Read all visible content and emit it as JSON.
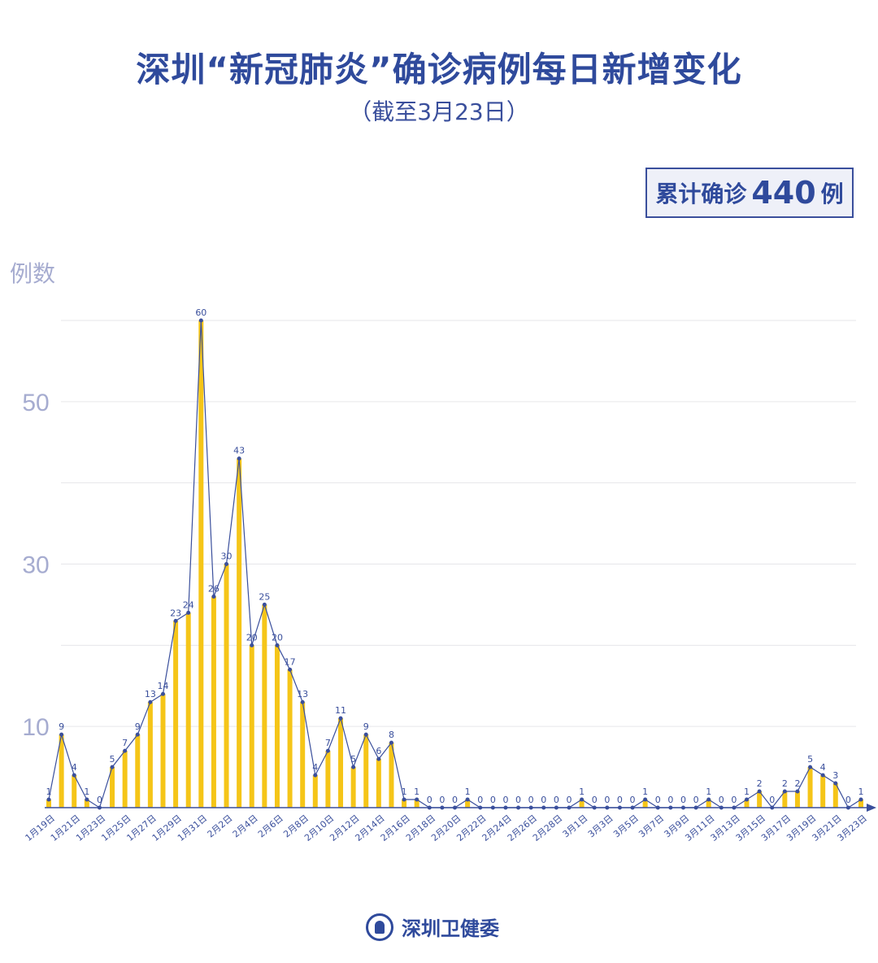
{
  "title": "深圳“新冠肺炎”确诊病例每日新增变化",
  "subtitle": "（截至3月23日）",
  "total": {
    "prefix": "累计确诊",
    "value": "440",
    "suffix": "例"
  },
  "footer": {
    "org": "深圳卫健委"
  },
  "colors": {
    "bar": "#f5c518",
    "line": "#3a4f9c",
    "title": "#2f4a9c",
    "axis_text": "#a6acd0"
  },
  "chart_data": {
    "type": "bar+line",
    "ylabel": "例数",
    "ylim": [
      0,
      60
    ],
    "yticks_labeled": [
      10,
      30,
      50
    ],
    "gridlines": [
      10,
      20,
      30,
      40,
      50,
      60
    ],
    "grid": true,
    "categories": [
      "1月19日",
      "1月20日",
      "1月21日",
      "1月22日",
      "1月23日",
      "1月24日",
      "1月25日",
      "1月26日",
      "1月27日",
      "1月28日",
      "1月29日",
      "1月30日",
      "1月31日",
      "2月1日",
      "2月2日",
      "2月3日",
      "2月4日",
      "2月5日",
      "2月6日",
      "2月7日",
      "2月8日",
      "2月9日",
      "2月10日",
      "2月11日",
      "2月12日",
      "2月13日",
      "2月14日",
      "2月15日",
      "2月16日",
      "2月17日",
      "2月18日",
      "2月19日",
      "2月20日",
      "2月21日",
      "2月22日",
      "2月23日",
      "2月24日",
      "2月25日",
      "2月26日",
      "2月27日",
      "2月28日",
      "2月29日",
      "3月1日",
      "3月2日",
      "3月3日",
      "3月4日",
      "3月5日",
      "3月6日",
      "3月7日",
      "3月8日",
      "3月9日",
      "3月10日",
      "3月11日",
      "3月12日",
      "3月13日",
      "3月14日",
      "3月15日",
      "3月16日",
      "3月17日",
      "3月18日",
      "3月19日",
      "3月20日",
      "3月21日",
      "3月22日",
      "3月23日"
    ],
    "values": [
      1,
      9,
      4,
      1,
      0,
      5,
      7,
      9,
      13,
      14,
      23,
      24,
      60,
      26,
      30,
      43,
      20,
      25,
      20,
      17,
      13,
      4,
      7,
      11,
      5,
      9,
      6,
      8,
      1,
      1,
      0,
      0,
      0,
      1,
      0,
      0,
      0,
      0,
      0,
      0,
      0,
      0,
      1,
      0,
      0,
      0,
      0,
      1,
      0,
      0,
      0,
      0,
      1,
      0,
      0,
      1,
      2,
      0,
      2,
      2,
      5,
      4,
      3,
      0,
      1
    ]
  }
}
